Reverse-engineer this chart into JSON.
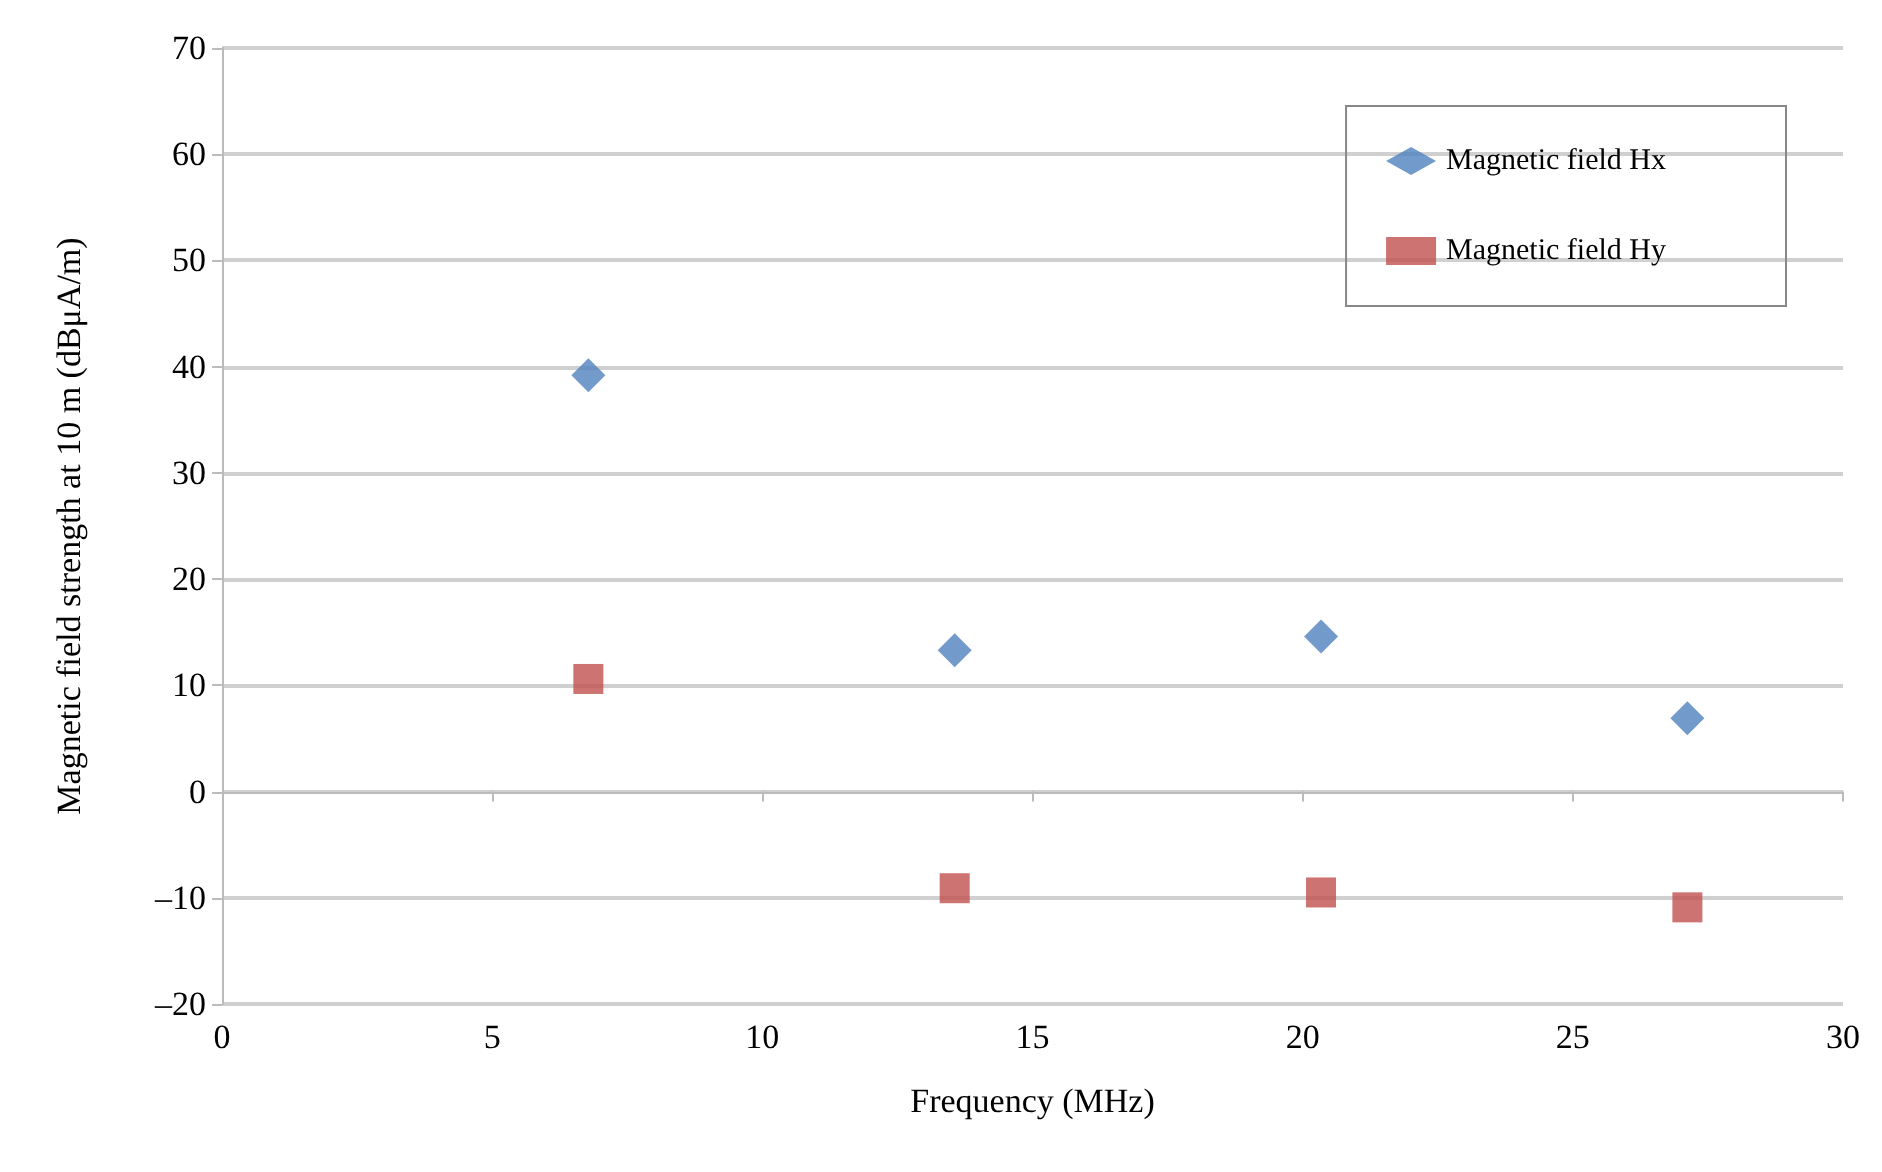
{
  "chart_data": {
    "type": "scatter",
    "xlabel": "Frequency (MHz)",
    "ylabel": "Magnetic field strength at 10 m (dBμA/m)",
    "x": [
      6.78,
      13.56,
      20.34,
      27.12
    ],
    "series": [
      {
        "name": "Magnetic field Hx",
        "color": "#4f81bd",
        "marker": "diamond",
        "values": [
          39.2,
          13.3,
          14.6,
          6.9
        ]
      },
      {
        "name": "Magnetic field Hy",
        "color": "#c0504d",
        "marker": "square",
        "values": [
          10.6,
          -9.1,
          -9.5,
          -10.9
        ]
      }
    ],
    "xlim": [
      0,
      30
    ],
    "xticks": [
      0,
      5,
      10,
      15,
      20,
      25,
      30
    ],
    "ylim": [
      -20,
      70
    ],
    "yticks": [
      {
        "value": -20,
        "label": "–20"
      },
      {
        "value": -10,
        "label": "–10"
      },
      0,
      10,
      20,
      30,
      40,
      50,
      60,
      70
    ],
    "grid": "y",
    "legend": "top right"
  }
}
